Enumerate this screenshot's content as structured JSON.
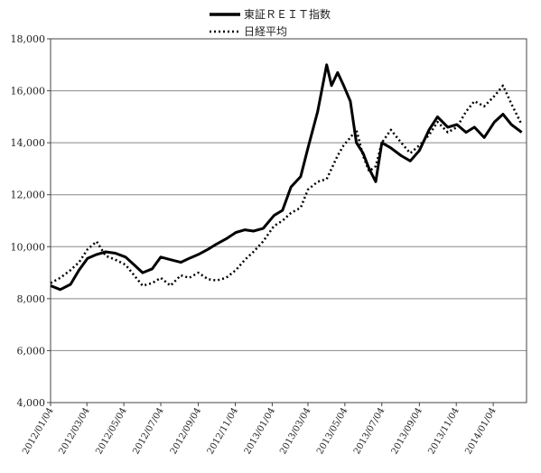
{
  "chart_data": {
    "type": "line",
    "title": "",
    "xlabel": "",
    "ylabel": "",
    "ylim": [
      4000,
      18000
    ],
    "yticks": [
      "4,000",
      "6,000",
      "8,000",
      "10,000",
      "12,000",
      "14,000",
      "16,000",
      "18,000"
    ],
    "grid": true,
    "legend_position": "top-center",
    "x_tick_labels": [
      "2012/01/04",
      "2012/03/04",
      "2012/05/04",
      "2012/07/04",
      "2012/09/04",
      "2012/11/04",
      "2013/01/04",
      "2013/03/04",
      "2013/05/04",
      "2013/07/04",
      "2013/09/04",
      "2013/11/04",
      "2014/01/04"
    ],
    "x": [
      "2012/01/04",
      "2012/01/20",
      "2012/02/06",
      "2012/02/20",
      "2012/03/05",
      "2012/03/20",
      "2012/04/04",
      "2012/04/20",
      "2012/05/07",
      "2012/05/21",
      "2012/06/04",
      "2012/06/20",
      "2012/07/04",
      "2012/07/20",
      "2012/08/06",
      "2012/08/20",
      "2012/09/04",
      "2012/09/20",
      "2012/10/04",
      "2012/10/20",
      "2012/11/05",
      "2012/11/20",
      "2012/12/04",
      "2012/12/20",
      "2013/01/07",
      "2013/01/21",
      "2013/02/04",
      "2013/02/20",
      "2013/03/04",
      "2013/03/20",
      "2013/04/04",
      "2013/04/12",
      "2013/04/22",
      "2013/05/02",
      "2013/05/13",
      "2013/05/23",
      "2013/06/03",
      "2013/06/13",
      "2013/06/24",
      "2013/07/04",
      "2013/07/19",
      "2013/08/05",
      "2013/08/20",
      "2013/09/04",
      "2013/09/20",
      "2013/10/04",
      "2013/10/21",
      "2013/11/05",
      "2013/11/20",
      "2013/12/04",
      "2013/12/20",
      "2014/01/06",
      "2014/01/20",
      "2014/02/03",
      "2014/02/20"
    ],
    "series": [
      {
        "name": "東証ＲＥＩＴ指数",
        "style": "solid",
        "color": "#000000",
        "values": [
          8500,
          8350,
          8550,
          9100,
          9550,
          9700,
          9800,
          9750,
          9600,
          9300,
          9000,
          9150,
          9600,
          9500,
          9400,
          9550,
          9700,
          9900,
          10100,
          10300,
          10550,
          10650,
          10600,
          10700,
          11200,
          11400,
          12300,
          12700,
          13800,
          15200,
          17000,
          16200,
          16700,
          16200,
          15600,
          14000,
          13600,
          13000,
          12500,
          14000,
          13800,
          13500,
          13300,
          13700,
          14500,
          15000,
          14600,
          14700,
          14400,
          14600,
          14200,
          14800,
          15100,
          14700,
          14400
        ]
      },
      {
        "name": "日経平均",
        "style": "dotted",
        "color": "#000000",
        "values": [
          8600,
          8800,
          9100,
          9400,
          9900,
          10200,
          9650,
          9500,
          9300,
          8900,
          8500,
          8600,
          8800,
          8500,
          8900,
          8800,
          9000,
          8750,
          8700,
          8800,
          9100,
          9500,
          9800,
          10200,
          10800,
          11000,
          11300,
          11500,
          12200,
          12500,
          12600,
          13000,
          13500,
          13900,
          14200,
          14500,
          13500,
          12900,
          13100,
          14000,
          14500,
          14000,
          13600,
          13900,
          14300,
          14800,
          14400,
          14600,
          15200,
          15600,
          15400,
          15800,
          16200,
          15500,
          14700
        ]
      }
    ]
  }
}
